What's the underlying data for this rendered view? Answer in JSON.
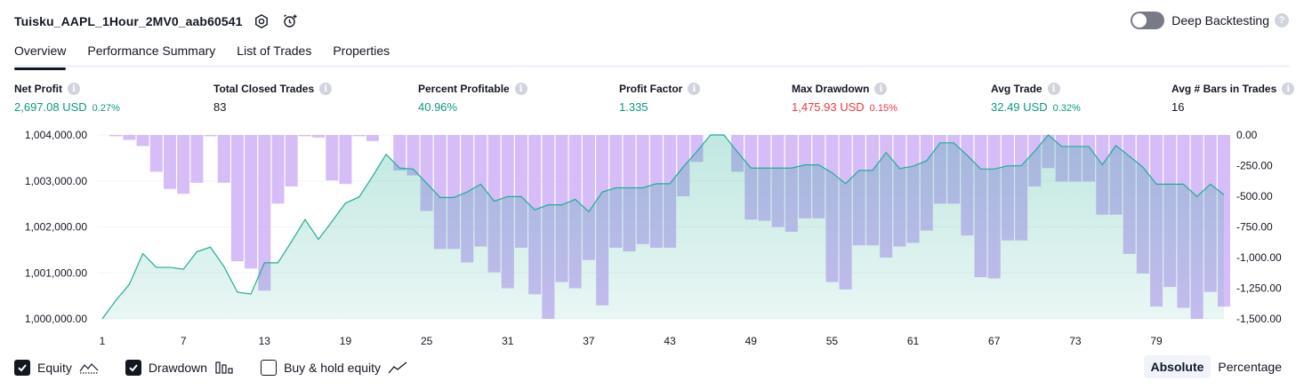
{
  "header": {
    "strategy_name": "Tuisku_AAPL_1Hour_2MV0_aab60541",
    "deep_backtesting_label": "Deep Backtesting",
    "deep_backtesting_enabled": false
  },
  "tabs": [
    {
      "label": "Overview",
      "active": true
    },
    {
      "label": "Performance Summary",
      "active": false
    },
    {
      "label": "List of Trades",
      "active": false
    },
    {
      "label": "Properties",
      "active": false
    }
  ],
  "metrics": [
    {
      "title": "Net Profit",
      "value": "2,697.08 USD",
      "pct": "0.27%",
      "tone": "green"
    },
    {
      "title": "Total Closed Trades",
      "value": "83",
      "pct": "",
      "tone": "dark"
    },
    {
      "title": "Percent Profitable",
      "value": "40.96%",
      "pct": "",
      "tone": "green"
    },
    {
      "title": "Profit Factor",
      "value": "1.335",
      "pct": "",
      "tone": "green"
    },
    {
      "title": "Max Drawdown",
      "value": "1,475.93 USD",
      "pct": "0.15%",
      "tone": "red"
    },
    {
      "title": "Avg Trade",
      "value": "32.49 USD",
      "pct": "0.32%",
      "tone": "green"
    },
    {
      "title": "Avg # Bars in Trades",
      "value": "16",
      "pct": "",
      "tone": "dark"
    }
  ],
  "chart_data": {
    "type": "area",
    "x_ticks": [
      "1",
      "7",
      "13",
      "19",
      "25",
      "31",
      "37",
      "43",
      "49",
      "55",
      "61",
      "67",
      "73",
      "79"
    ],
    "y_left_ticks": [
      "1,004,000.00",
      "1,003,000.00",
      "1,002,000.00",
      "1,001,000.00",
      "1,000,000.00"
    ],
    "y_right_ticks": [
      "0.00",
      "-250.00",
      "-500.00",
      "-750.00",
      "-1,000.00",
      "-1,250.00",
      "-1,500.00"
    ],
    "y_left_range": [
      1000000,
      1004000
    ],
    "y_right_range": [
      -1500,
      0
    ],
    "x_range": [
      1,
      84
    ],
    "colors": {
      "equity_line": "#22ab94",
      "equity_fill": "#c7ebe3",
      "drawdown": "#cbaaf6",
      "grid": "#f0f3fa"
    },
    "series": [
      {
        "name": "Equity",
        "values": [
          1000000,
          1000400,
          1000750,
          1001420,
          1001120,
          1001120,
          1001080,
          1001460,
          1001560,
          1001140,
          1000580,
          1000540,
          1001220,
          1001220,
          1001680,
          1002160,
          1001730,
          1002120,
          1002520,
          1002650,
          1003100,
          1003580,
          1003280,
          1003260,
          1002950,
          1002640,
          1002640,
          1002760,
          1002930,
          1002560,
          1002660,
          1002660,
          1002370,
          1002480,
          1002480,
          1002600,
          1002330,
          1002760,
          1002850,
          1002850,
          1002850,
          1002940,
          1002940,
          1003310,
          1003640,
          1004000,
          1004000,
          1003630,
          1003280,
          1003280,
          1003280,
          1003280,
          1003350,
          1003350,
          1003180,
          1002940,
          1003230,
          1003230,
          1003620,
          1003270,
          1003320,
          1003440,
          1003830,
          1003830,
          1003560,
          1003260,
          1003260,
          1003330,
          1003330,
          1003650,
          1004000,
          1003750,
          1003750,
          1003750,
          1003350,
          1003770,
          1003540,
          1003300,
          1002930,
          1002930,
          1002930,
          1002660,
          1002930,
          1002700
        ]
      },
      {
        "name": "Drawdown",
        "values": [
          0,
          -10,
          -40,
          -90,
          -300,
          -440,
          -480,
          -390,
          -10,
          -390,
          -1030,
          -1090,
          -1270,
          -560,
          -420,
          -10,
          -20,
          -370,
          -400,
          -10,
          -50,
          0,
          -290,
          -330,
          -620,
          -930,
          -930,
          -1040,
          -910,
          -1120,
          -1250,
          -920,
          -1300,
          -1500,
          -1200,
          -1250,
          -1020,
          -1390,
          -920,
          -950,
          -890,
          -920,
          -920,
          -500,
          -220,
          0,
          0,
          -300,
          -690,
          -700,
          -750,
          -790,
          -680,
          -680,
          -1200,
          -1260,
          -900,
          -900,
          -1000,
          -910,
          -880,
          -780,
          -560,
          -560,
          -820,
          -1160,
          -1170,
          -860,
          -860,
          -420,
          -270,
          -380,
          -380,
          -380,
          -650,
          -650,
          -970,
          -1130,
          -1400,
          -1240,
          -1410,
          -1500,
          -1280,
          -1400
        ]
      }
    ]
  },
  "legend": [
    {
      "label": "Equity",
      "checked": true,
      "icon": "equity-line-icon"
    },
    {
      "label": "Drawdown",
      "checked": true,
      "icon": "drawdown-bars-icon"
    },
    {
      "label": "Buy & hold equity",
      "checked": false,
      "icon": "buy-hold-line-icon"
    }
  ],
  "mode": {
    "options": [
      "Absolute",
      "Percentage"
    ],
    "selected": "Absolute"
  }
}
